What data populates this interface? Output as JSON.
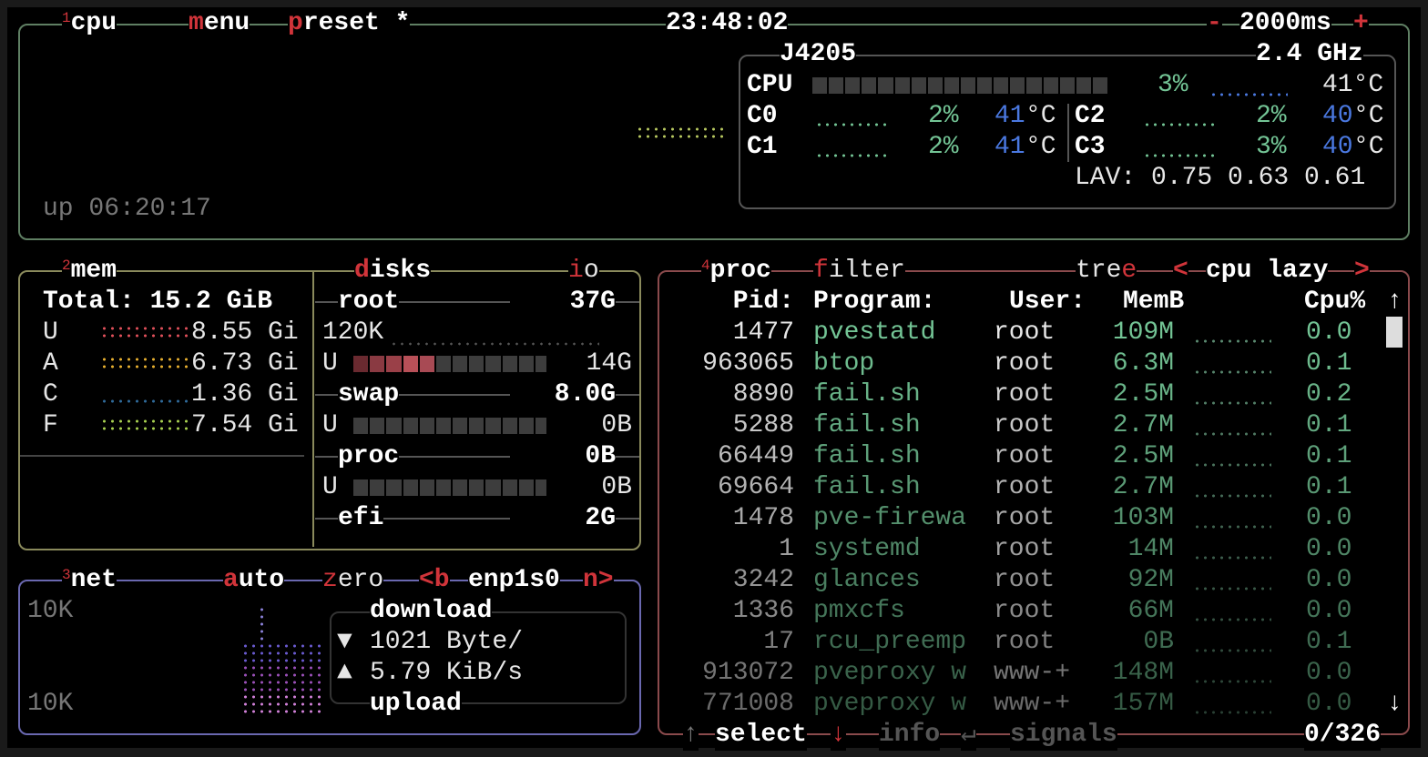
{
  "colors": {
    "accent": "#d0343a",
    "cpu_border": "#5f7f63",
    "mem_border": "#8a8a5c",
    "net_border": "#6a68b0",
    "proc_border": "#8a4a4c",
    "value_green": "#73c495",
    "temp_blue": "#4a78e0"
  },
  "cpu": {
    "num": "1",
    "title": "cpu",
    "menu_key": "m",
    "menu_rest": "enu",
    "preset_key": "p",
    "preset_rest": "reset *",
    "clock": "23:48:02",
    "minus": "-",
    "interval": "2000ms",
    "plus": "+",
    "uptime": "up 06:20:17",
    "model": "J4205",
    "freq": "2.4 GHz",
    "total_label": "CPU",
    "total_pct": "3%",
    "total_pct_value": 3,
    "total_temp": "41°C",
    "cores": [
      {
        "label": "C0",
        "pct": "2%",
        "temp": "41",
        "unit": "°C"
      },
      {
        "label": "C1",
        "pct": "2%",
        "temp": "41",
        "unit": "°C"
      },
      {
        "label": "C2",
        "pct": "2%",
        "temp": "40",
        "unit": "°C"
      },
      {
        "label": "C3",
        "pct": "3%",
        "temp": "40",
        "unit": "°C"
      }
    ],
    "lav": "LAV: 0.75 0.63 0.61"
  },
  "mem": {
    "num": "2",
    "title": "mem",
    "total": "Total: 15.2 GiB",
    "rows": [
      {
        "label": "U",
        "value": "8.55 Gi",
        "color": "#e0505a"
      },
      {
        "label": "A",
        "value": "6.73 Gi",
        "color": "#e8b030"
      },
      {
        "label": "C",
        "value": "1.36 Gi",
        "color": "#2f6a9a"
      },
      {
        "label": "F",
        "value": "7.54 Gi",
        "color": "#a8d050"
      }
    ]
  },
  "disks": {
    "key": "d",
    "rest": "isks",
    "io_key": "i",
    "io_rest": "o",
    "io_rate": "120K",
    "items": [
      {
        "name": "root",
        "size": "37G",
        "used_label": "U",
        "used": "14G",
        "used_fraction": 0.38
      },
      {
        "name": "swap",
        "size": "8.0G",
        "used_label": "U",
        "used": "0B",
        "used_fraction": 0
      },
      {
        "name": "proc",
        "size": "0B",
        "used_label": "U",
        "used": "0B",
        "used_fraction": 0
      },
      {
        "name": "efi",
        "size": "2G"
      }
    ]
  },
  "net": {
    "num": "3",
    "title": "net",
    "auto_key": "a",
    "auto_rest": "uto",
    "zero_key": "z",
    "zero_rest": "ero",
    "prev": "<b",
    "iface": "enp1s0",
    "next": "n>",
    "scale_top": "10K",
    "scale_bottom": "10K",
    "download_label": "download",
    "down_icon": "▼",
    "down_rate": "1021 Byte/",
    "up_icon": "▲",
    "up_rate": "5.79 KiB/s",
    "upload_label": "upload"
  },
  "proc": {
    "num": "4",
    "title": "proc",
    "filter_key": "f",
    "filter_rest": "ilter",
    "tree_rest": "tre",
    "tree_key": "e",
    "sort_prev": "<",
    "sort": "cpu lazy",
    "sort_next": ">",
    "headers": {
      "pid": "Pid:",
      "program": "Program:",
      "user": "User:",
      "mem": "MemB",
      "cpu": "Cpu%",
      "up": "↑",
      "down": "↓"
    },
    "rows": [
      {
        "pid": "1477",
        "program": "pvestatd",
        "user": "root",
        "mem": "109M",
        "cpu": "0.0"
      },
      {
        "pid": "963065",
        "program": "btop",
        "user": "root",
        "mem": "6.3M",
        "cpu": "0.1"
      },
      {
        "pid": "8890",
        "program": "fail.sh",
        "user": "root",
        "mem": "2.5M",
        "cpu": "0.2"
      },
      {
        "pid": "5288",
        "program": "fail.sh",
        "user": "root",
        "mem": "2.7M",
        "cpu": "0.1"
      },
      {
        "pid": "66449",
        "program": "fail.sh",
        "user": "root",
        "mem": "2.5M",
        "cpu": "0.1"
      },
      {
        "pid": "69664",
        "program": "fail.sh",
        "user": "root",
        "mem": "2.7M",
        "cpu": "0.1"
      },
      {
        "pid": "1478",
        "program": "pve-firewa",
        "user": "root",
        "mem": "103M",
        "cpu": "0.0"
      },
      {
        "pid": "1",
        "program": "systemd",
        "user": "root",
        "mem": "14M",
        "cpu": "0.0"
      },
      {
        "pid": "3242",
        "program": "glances",
        "user": "root",
        "mem": "92M",
        "cpu": "0.0"
      },
      {
        "pid": "1336",
        "program": "pmxcfs",
        "user": "root",
        "mem": "66M",
        "cpu": "0.0"
      },
      {
        "pid": "17",
        "program": "rcu_preemp",
        "user": "root",
        "mem": "0B",
        "cpu": "0.1"
      },
      {
        "pid": "913072",
        "program": "pveproxy w",
        "user": "www-+",
        "mem": "148M",
        "cpu": "0.0"
      },
      {
        "pid": "771008",
        "program": "pveproxy w",
        "user": "www-+",
        "mem": "157M",
        "cpu": "0.0"
      }
    ],
    "footer": {
      "up": "↑",
      "select": "select",
      "down": "↓",
      "info": "info",
      "enter": "↵",
      "signals": "signals",
      "count": "0/326"
    }
  }
}
